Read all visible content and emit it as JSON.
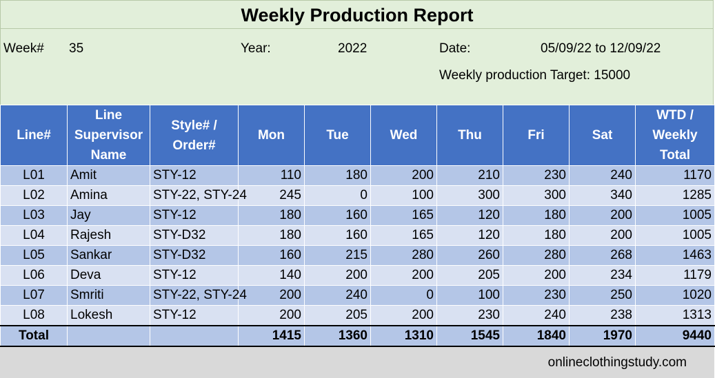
{
  "title": "Weekly Production Report",
  "info": {
    "week_label": "Week#",
    "week_value": "35",
    "year_label": "Year:",
    "year_value": "2022",
    "date_label": "Date:",
    "date_value": "05/09/22 to 12/09/22",
    "target_text": "Weekly production Target: 15000"
  },
  "headers": [
    "Line#",
    "Line Supervisor Name",
    "Style# / Order#",
    "Mon",
    "Tue",
    "Wed",
    "Thu",
    "Fri",
    "Sat",
    "WTD / Weekly Total"
  ],
  "rows": [
    [
      "L01",
      "Amit",
      "STY-12",
      "110",
      "180",
      "200",
      "210",
      "230",
      "240",
      "1170"
    ],
    [
      "L02",
      "Amina",
      "STY-22, STY-24",
      "245",
      "0",
      "100",
      "300",
      "300",
      "340",
      "1285"
    ],
    [
      "L03",
      "Jay",
      "STY-12",
      "180",
      "160",
      "165",
      "120",
      "180",
      "200",
      "1005"
    ],
    [
      "L04",
      "Rajesh",
      "STY-D32",
      "180",
      "160",
      "165",
      "120",
      "180",
      "200",
      "1005"
    ],
    [
      "L05",
      "Sankar",
      "STY-D32",
      "160",
      "215",
      "280",
      "260",
      "280",
      "268",
      "1463"
    ],
    [
      "L06",
      "Deva",
      "STY-12",
      "140",
      "200",
      "200",
      "205",
      "200",
      "234",
      "1179"
    ],
    [
      "L07",
      "Smriti",
      "STY-22, STY-24",
      "200",
      "240",
      "0",
      "100",
      "230",
      "250",
      "1020"
    ],
    [
      "L08",
      "Lokesh",
      "STY-12",
      "200",
      "205",
      "200",
      "230",
      "240",
      "238",
      "1313"
    ]
  ],
  "total_row": [
    "Total",
    "",
    "",
    "1415",
    "1360",
    "1310",
    "1545",
    "1840",
    "1970",
    "9440"
  ],
  "footer": "onlineclothingstudy.com",
  "colors": {
    "header_blue": "#4472c4",
    "row_band_dark": "#b4c6e7",
    "row_band_light": "#d9e1f2",
    "info_green": "#e2efda",
    "footer_gray": "#d9d9d9"
  }
}
